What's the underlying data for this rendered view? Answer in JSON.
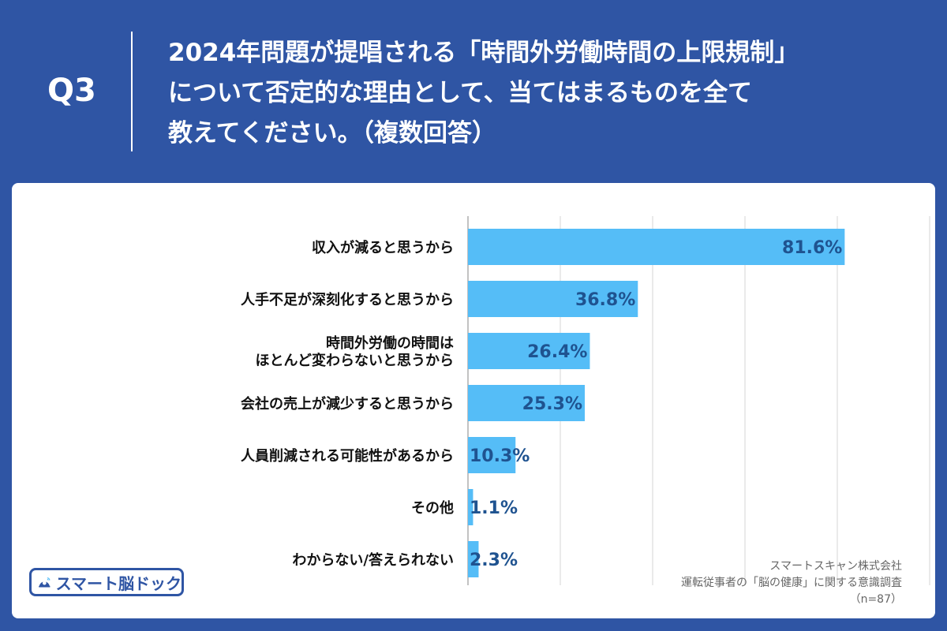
{
  "header": {
    "question_label": "Q3",
    "question_lines": [
      "2024年問題が提唱される「時間外労働時間の上限規制」",
      "について否定的な理由として、当てはまるものを全て",
      "教えてください。（複数回答）"
    ]
  },
  "chart_data": {
    "type": "bar",
    "orientation": "horizontal",
    "categories": [
      [
        "収入が減ると思うから"
      ],
      [
        "人手不足が深刻化すると思うから"
      ],
      [
        "時間外労働の時間は",
        "ほとんど変わらないと思うから"
      ],
      [
        "会社の売上が減少すると思うから"
      ],
      [
        "人員削減される可能性があるから"
      ],
      [
        "その他"
      ],
      [
        "わからない/答えられない"
      ]
    ],
    "values": [
      81.6,
      36.8,
      26.4,
      25.3,
      10.3,
      1.1,
      2.3
    ],
    "value_labels": [
      "81.6%",
      "36.8%",
      "26.4%",
      "25.3%",
      "10.3%",
      "1.1%",
      "2.3%"
    ],
    "xlim": [
      0,
      100
    ],
    "grid": true,
    "bar_color": "#55bdf7",
    "label_color": "#1f5390"
  },
  "footer": {
    "source_lines": [
      "スマートスキャン株式会社",
      "運転従事者の「脳の健康」に関する意識調査",
      "（n=87）"
    ],
    "logo_text": "スマート脳ドック"
  },
  "colors": {
    "background": "#2f55a4",
    "panel": "#ffffff",
    "bar": "#55bdf7",
    "value_text": "#1f5390"
  }
}
